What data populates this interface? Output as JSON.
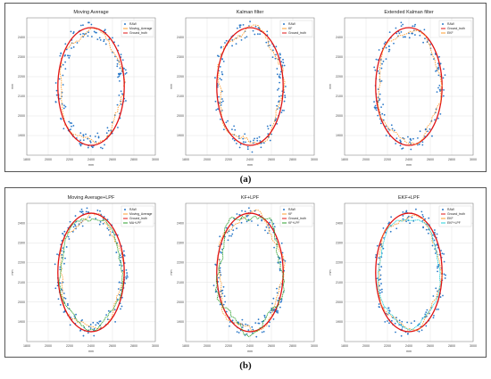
{
  "captions": {
    "a": "(a)",
    "b": "(b)"
  },
  "colors": {
    "raw": "#2a78c8",
    "ma": "#ff9d2e",
    "gt": "#e01414",
    "kf": "#ff9d2e",
    "ekf": "#ff9d2e",
    "lpf_green": "#2da02d",
    "lpf_cyan": "#22cfd8"
  },
  "chart_data": [
    {
      "type": "line",
      "title": "Moving Average",
      "xlabel": "mm",
      "ylabel": "mm",
      "xlim": [
        1800,
        3000
      ],
      "ylim": [
        1800,
        2500
      ],
      "xticks": [
        1800,
        2000,
        2200,
        2400,
        2600,
        2800,
        3000
      ],
      "yticks": [
        1900,
        2000,
        2100,
        2200,
        2300,
        2400
      ],
      "grid": true,
      "legend_position": "top-right",
      "legend": [
        "RAW",
        "Moving_Average",
        "Ground_truth"
      ],
      "series": [
        {
          "name": "RAW",
          "kind": "points",
          "center": [
            2400,
            2150
          ],
          "radius": [
            300,
            290
          ],
          "noise": 40
        },
        {
          "name": "Moving_Average",
          "kind": "ring",
          "center": [
            2400,
            2150
          ],
          "radius": [
            292,
            282
          ],
          "wobble": 18
        },
        {
          "name": "Ground_truth",
          "kind": "circle",
          "center": [
            2400,
            2150
          ],
          "radius": [
            310,
            300
          ]
        }
      ]
    },
    {
      "type": "line",
      "title": "Kalman filter",
      "xlabel": "mm",
      "ylabel": "mm",
      "xlim": [
        1800,
        3000
      ],
      "ylim": [
        1800,
        2500
      ],
      "xticks": [
        1800,
        2000,
        2200,
        2400,
        2600,
        2800,
        3000
      ],
      "yticks": [
        1900,
        2000,
        2100,
        2200,
        2300,
        2400
      ],
      "grid": true,
      "legend_position": "top-right",
      "legend": [
        "RAW",
        "KF",
        "Ground_truth"
      ],
      "series": [
        {
          "name": "RAW",
          "kind": "points",
          "center": [
            2400,
            2150
          ],
          "radius": [
            300,
            290
          ],
          "noise": 40
        },
        {
          "name": "KF",
          "kind": "ring",
          "center": [
            2400,
            2150
          ],
          "radius": [
            298,
            292
          ],
          "wobble": 22
        },
        {
          "name": "Ground_truth",
          "kind": "circle",
          "center": [
            2400,
            2150
          ],
          "radius": [
            310,
            300
          ]
        }
      ]
    },
    {
      "type": "line",
      "title": "Extended Kalman filter",
      "xlabel": "mm",
      "ylabel": "mm",
      "xlim": [
        1800,
        3000
      ],
      "ylim": [
        1800,
        2500
      ],
      "xticks": [
        1800,
        2000,
        2200,
        2400,
        2600,
        2800,
        3000
      ],
      "yticks": [
        1900,
        2000,
        2100,
        2200,
        2300,
        2400
      ],
      "grid": true,
      "legend_position": "top-right",
      "legend": [
        "RAW",
        "Ground_truth",
        "EKF"
      ],
      "series": [
        {
          "name": "RAW",
          "kind": "points",
          "center": [
            2400,
            2150
          ],
          "radius": [
            300,
            290
          ],
          "noise": 40
        },
        {
          "name": "Ground_truth",
          "kind": "circle",
          "center": [
            2400,
            2150
          ],
          "radius": [
            310,
            300
          ]
        },
        {
          "name": "EKF",
          "kind": "ring",
          "center": [
            2400,
            2150
          ],
          "radius": [
            290,
            282
          ],
          "wobble": 16
        }
      ]
    },
    {
      "type": "line",
      "title": "Moving Average+LPF",
      "xlabel": "mm",
      "ylabel": "mm",
      "xlim": [
        1800,
        3000
      ],
      "ylim": [
        1800,
        2500
      ],
      "xticks": [
        1800,
        2000,
        2200,
        2400,
        2600,
        2800,
        3000
      ],
      "yticks": [
        1900,
        2000,
        2100,
        2200,
        2300,
        2400
      ],
      "grid": true,
      "legend_position": "top-right",
      "legend": [
        "RAW",
        "Moving_Average",
        "Ground_truth",
        "MA+LPF"
      ],
      "series": [
        {
          "name": "RAW",
          "kind": "points",
          "center": [
            2400,
            2150
          ],
          "radius": [
            300,
            290
          ],
          "noise": 40
        },
        {
          "name": "Moving_Average",
          "kind": "ring",
          "center": [
            2400,
            2150
          ],
          "radius": [
            292,
            282
          ],
          "wobble": 18
        },
        {
          "name": "Ground_truth",
          "kind": "circle",
          "center": [
            2400,
            2150
          ],
          "radius": [
            310,
            300
          ]
        },
        {
          "name": "MA+LPF",
          "kind": "ring",
          "center": [
            2400,
            2150
          ],
          "radius": [
            288,
            280
          ],
          "wobble": 14
        }
      ]
    },
    {
      "type": "line",
      "title": "KF+LPF",
      "xlabel": "mm",
      "ylabel": "mm",
      "xlim": [
        1800,
        3000
      ],
      "ylim": [
        1800,
        2500
      ],
      "xticks": [
        1800,
        2000,
        2200,
        2400,
        2600,
        2800,
        3000
      ],
      "yticks": [
        1900,
        2000,
        2100,
        2200,
        2300,
        2400
      ],
      "grid": true,
      "legend_position": "top-right",
      "legend": [
        "RAW",
        "KF",
        "Ground_truth",
        "KF+LPF"
      ],
      "series": [
        {
          "name": "RAW",
          "kind": "points",
          "center": [
            2400,
            2150
          ],
          "radius": [
            300,
            290
          ],
          "noise": 40
        },
        {
          "name": "KF",
          "kind": "ring",
          "center": [
            2400,
            2150
          ],
          "radius": [
            298,
            292
          ],
          "wobble": 22
        },
        {
          "name": "Ground_truth",
          "kind": "circle",
          "center": [
            2400,
            2150
          ],
          "radius": [
            310,
            300
          ]
        },
        {
          "name": "KF+LPF",
          "kind": "ring",
          "center": [
            2400,
            2150
          ],
          "radius": [
            300,
            294
          ],
          "wobble": 26
        }
      ]
    },
    {
      "type": "line",
      "title": "EKF+LPF",
      "xlabel": "mm",
      "ylabel": "mm",
      "xlim": [
        1800,
        3000
      ],
      "ylim": [
        1800,
        2500
      ],
      "xticks": [
        1800,
        2000,
        2200,
        2400,
        2600,
        2800,
        3000
      ],
      "yticks": [
        1900,
        2000,
        2100,
        2200,
        2300,
        2400
      ],
      "grid": true,
      "legend_position": "top-right",
      "legend": [
        "RAW",
        "Ground_truth",
        "EKF",
        "EKF+LPF"
      ],
      "series": [
        {
          "name": "RAW",
          "kind": "points",
          "center": [
            2400,
            2150
          ],
          "radius": [
            300,
            290
          ],
          "noise": 40
        },
        {
          "name": "Ground_truth",
          "kind": "circle",
          "center": [
            2400,
            2150
          ],
          "radius": [
            310,
            300
          ]
        },
        {
          "name": "EKF",
          "kind": "ring",
          "center": [
            2400,
            2150
          ],
          "radius": [
            290,
            282
          ],
          "wobble": 16
        },
        {
          "name": "EKF+LPF",
          "kind": "ring",
          "center": [
            2400,
            2150
          ],
          "radius": [
            286,
            278
          ],
          "wobble": 12
        }
      ]
    }
  ]
}
